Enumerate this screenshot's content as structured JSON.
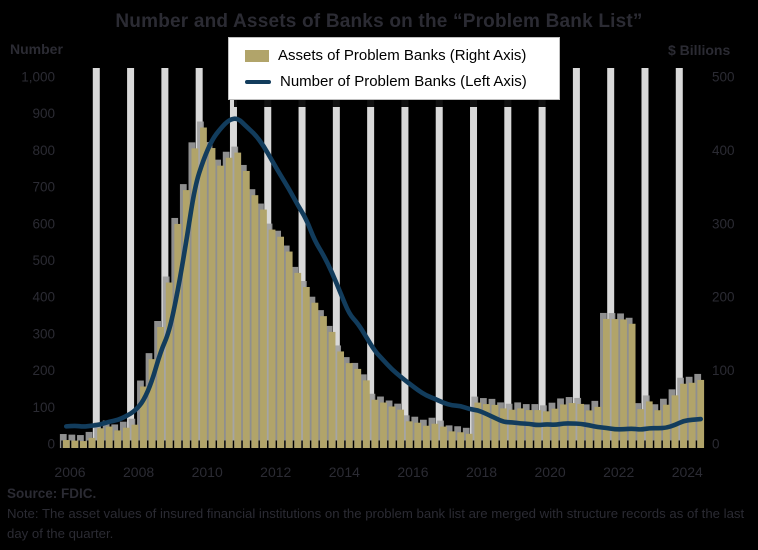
{
  "title": "Number and Assets of Banks on the “Problem Bank List”",
  "left_axis": {
    "unit_label": "Number",
    "ticks": [
      "1,000",
      "900",
      "800",
      "700",
      "600",
      "500",
      "400",
      "300",
      "200",
      "100",
      "0"
    ]
  },
  "right_axis": {
    "unit_label": "$ Billions",
    "ticks": [
      "500",
      "400",
      "300",
      "200",
      "100",
      "0"
    ]
  },
  "x_axis": {
    "year_labels": [
      "2006",
      "2008",
      "2010",
      "2012",
      "2014",
      "2016",
      "2018",
      "2020",
      "2022",
      "2024"
    ]
  },
  "legend": {
    "bar_label": "Assets of Problem Banks (Right Axis)",
    "line_label": "Number of Problem Banks (Left Axis)"
  },
  "source": "Source: FDIC.",
  "note": "Note: The asset values of insured financial institutions on the problem bank list are merged with structure records as of the last day of the quarter.",
  "colors": {
    "background": "#000000",
    "bar": "#b1a46a",
    "bar_shadow": "#9e9e9e",
    "line": "#123c5c",
    "gridline": "#d9d9d9",
    "ink": "#2b2b33",
    "tick": "#000000",
    "legend_bg": "#ffffff"
  },
  "chart_data": {
    "type": "combo",
    "x": [
      "2006 Q1",
      "2006 Q2",
      "2006 Q3",
      "2006 Q4",
      "2007 Q1",
      "2007 Q2",
      "2007 Q3",
      "2007 Q4",
      "2008 Q1",
      "2008 Q2",
      "2008 Q3",
      "2008 Q4",
      "2009 Q1",
      "2009 Q2",
      "2009 Q3",
      "2009 Q4",
      "2010 Q1",
      "2010 Q2",
      "2010 Q3",
      "2010 Q4",
      "2011 Q1",
      "2011 Q2",
      "2011 Q3",
      "2011 Q4",
      "2012 Q1",
      "2012 Q2",
      "2012 Q3",
      "2012 Q4",
      "2013 Q1",
      "2013 Q2",
      "2013 Q3",
      "2013 Q4",
      "2014 Q1",
      "2014 Q2",
      "2014 Q3",
      "2014 Q4",
      "2015 Q1",
      "2015 Q2",
      "2015 Q3",
      "2015 Q4",
      "2016 Q1",
      "2016 Q2",
      "2016 Q3",
      "2016 Q4",
      "2017 Q1",
      "2017 Q2",
      "2017 Q3",
      "2017 Q4",
      "2018 Q1",
      "2018 Q2",
      "2018 Q3",
      "2018 Q4",
      "2019 Q1",
      "2019 Q2",
      "2019 Q3",
      "2019 Q4",
      "2020 Q1",
      "2020 Q2",
      "2020 Q3",
      "2020 Q4",
      "2021 Q1",
      "2021 Q2",
      "2021 Q3",
      "2021 Q4",
      "2022 Q1",
      "2022 Q2",
      "2022 Q3",
      "2022 Q4",
      "2023 Q1",
      "2023 Q2",
      "2023 Q3",
      "2023 Q4",
      "2024 Q1",
      "2024 Q2",
      "2024 Q3"
    ],
    "series": [
      {
        "name": "Assets of Problem Banks (Right Axis)",
        "type": "bar",
        "axis": "right",
        "values": [
          5.4,
          4.6,
          4.0,
          8.3,
          21.4,
          23.8,
          18.5,
          22.2,
          26.3,
          78.3,
          115.6,
          159.4,
          220.0,
          299.8,
          345.9,
          402.8,
          431.2,
          403.2,
          379.2,
          390.0,
          397.0,
          372.0,
          339.0,
          319.4,
          292.1,
          282.4,
          262.2,
          233.1,
          213.9,
          192.5,
          174.2,
          152.7,
          126.1,
          110.2,
          102.3,
          86.7,
          60.3,
          56.5,
          51.1,
          46.8,
          30.9,
          29.0,
          24.9,
          27.6,
          23.7,
          17.2,
          16.0,
          13.9,
          56.4,
          54.4,
          53.3,
          48.5,
          46.7,
          48.5,
          46.2,
          46.2,
          44.5,
          48.1,
          53.9,
          55.8,
          54.6,
          45.8,
          50.6,
          170.4,
          170.2,
          169.7,
          163.8,
          47.5,
          58.0,
          46.0,
          53.5,
          66.3,
          82.1,
          83.4,
          87.3
        ]
      },
      {
        "name": "Number of Problem Banks (Left Axis)",
        "type": "line",
        "axis": "left",
        "values": [
          48,
          50,
          47,
          50,
          53,
          61,
          65,
          76,
          90,
          117,
          171,
          252,
          305,
          416,
          552,
          702,
          775,
          829,
          860,
          884,
          888,
          865,
          844,
          813,
          772,
          732,
          694,
          651,
          612,
          553,
          515,
          467,
          411,
          354,
          329,
          291,
          253,
          228,
          203,
          183,
          165,
          147,
          132,
          123,
          112,
          105,
          104,
          95,
          92,
          82,
          71,
          60,
          59,
          56,
          55,
          51,
          54,
          52,
          56,
          56,
          55,
          51,
          46,
          44,
          40,
          40,
          42,
          39,
          43,
          43,
          44,
          52,
          63,
          66,
          68
        ]
      }
    ],
    "left_ylim": [
      0,
      1000
    ],
    "right_ylim": [
      0,
      500
    ],
    "grid": "vertical-yearly",
    "legend_position": "top-center"
  }
}
